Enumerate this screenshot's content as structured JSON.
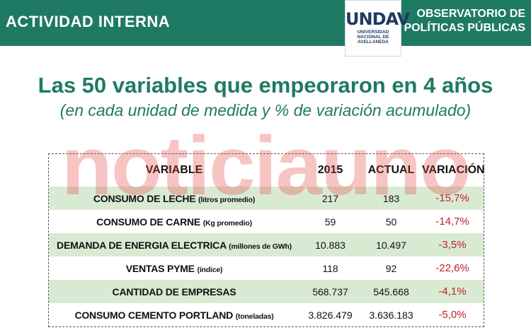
{
  "header": {
    "section_label": "ACTIVIDAD INTERNA",
    "logo": {
      "mark": "UNDAV",
      "lines": [
        "UNIVERSIDAD",
        "NACIONAL DE",
        "AVELLANEDA"
      ]
    },
    "observatorio_lines": [
      "OBSERVATORIO DE",
      "POLÍTICAS PÚBLICAS"
    ]
  },
  "title": "Las 50 variables que empeoraron en 4 años",
  "subtitle": "(en cada unidad de medida y % de variación acumulado)",
  "watermark": "noticiauno",
  "table": {
    "headers": [
      "VARIABLE",
      "2015",
      "ACTUAL",
      "VARIACIÓN"
    ],
    "rows": [
      {
        "name": "CONSUMO DE LECHE",
        "unit": "(litros promedio)",
        "v2015": "217",
        "actual": "183",
        "variacion": "-15,7%"
      },
      {
        "name": "CONSUMO DE CARNE",
        "unit": "(Kg promedio)",
        "v2015": "59",
        "actual": "50",
        "variacion": "-14,7%"
      },
      {
        "name": "DEMANDA DE ENERGIA ELECTRICA",
        "unit": "(millones de GWh)",
        "v2015": "10.883",
        "actual": "10.497",
        "variacion": "-3,5%"
      },
      {
        "name": "VENTAS PYME",
        "unit": "(índice)",
        "v2015": "118",
        "actual": "92",
        "variacion": "-22,6%"
      },
      {
        "name": "CANTIDAD DE EMPRESAS",
        "unit": "",
        "v2015": "568.737",
        "actual": "545.668",
        "variacion": "-4,1%"
      },
      {
        "name": "CONSUMO CEMENTO PORTLAND",
        "unit": "(toneladas)",
        "v2015": "3.826.479",
        "actual": "3.636.183",
        "variacion": "-5,0%"
      }
    ]
  },
  "colors": {
    "brand_green": "#1f7a63",
    "row_shade": "#d9ead3",
    "negative_red": "#c0202a",
    "logo_navy": "#1e3a5f"
  }
}
